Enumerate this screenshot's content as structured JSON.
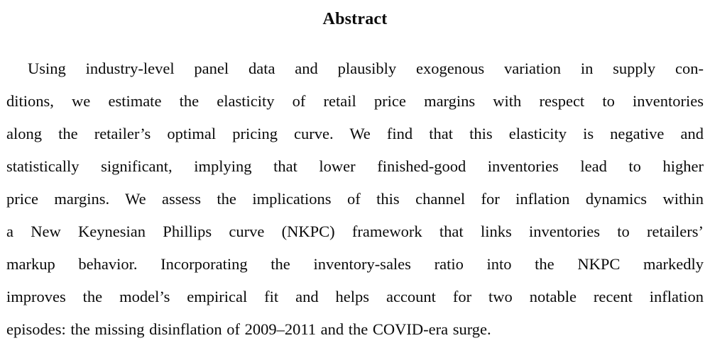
{
  "page": {
    "background": "#ffffff",
    "text_color": "#0a0a0a"
  },
  "abstract": {
    "title": "Abstract",
    "lines": [
      "Using industry-level panel data and plausibly exogenous variation in supply con-",
      "ditions, we estimate the elasticity of retail price margins with respect to inventories",
      "along the retailer’s optimal pricing curve. We find that this elasticity is negative and",
      "statistically significant, implying that lower finished-good inventories lead to higher",
      "price margins. We assess the implications of this channel for inflation dynamics within",
      "a New Keynesian Phillips curve (NKPC) framework that links inventories to retailers’",
      "markup behavior. Incorporating the inventory-sales ratio into the NKPC markedly",
      "improves the model’s empirical fit and helps account for two notable recent inflation",
      "episodes: the missing disinflation of 2009–2011 and the COVID-era surge."
    ],
    "full_text": "Using industry-level panel data and plausibly exogenous variation in supply conditions, we estimate the elasticity of retail price margins with respect to inventories along the retailer’s optimal pricing curve. We find that this elasticity is negative and statistically significant, implying that lower finished-good inventories lead to higher price margins. We assess the implications of this channel for inflation dynamics within a New Keynesian Phillips curve (NKPC) framework that links inventories to retailers’ markup behavior. Incorporating the inventory-sales ratio into the NKPC markedly improves the model’s empirical fit and helps account for two notable recent inflation episodes: the missing disinflation of 2009–2011 and the COVID-era surge."
  }
}
